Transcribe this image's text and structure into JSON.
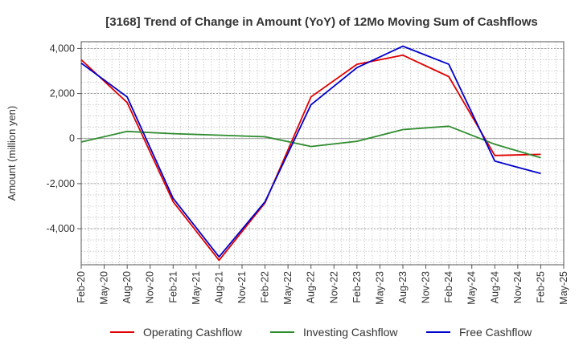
{
  "chart_data": {
    "type": "line",
    "title": "[3168]  Trend of Change in Amount (YoY) of 12Mo Moving Sum of Cashflows",
    "xlabel": "",
    "ylabel": "Amount (million yen)",
    "ylim": [
      -5600,
      4300
    ],
    "yticks": [
      -4000,
      -2000,
      0,
      2000,
      4000
    ],
    "ytick_labels": [
      "-4,000",
      "-2,000",
      "0",
      "2,000",
      "4,000"
    ],
    "categories": [
      "Feb-20",
      "May-20",
      "Aug-20",
      "Nov-20",
      "Feb-21",
      "May-21",
      "Aug-21",
      "Nov-21",
      "Feb-22",
      "May-22",
      "Aug-22",
      "Nov-22",
      "Feb-23",
      "May-23",
      "Aug-23",
      "Nov-23",
      "Feb-24",
      "May-24",
      "Aug-24",
      "Nov-24",
      "Feb-25",
      "May-25"
    ],
    "grid": true,
    "legend_position": "bottom",
    "series": [
      {
        "name": "Operating Cashflow",
        "color": "#e00000",
        "values": [
          3500,
          null,
          1600,
          null,
          -2800,
          null,
          -5400,
          null,
          -2850,
          null,
          1850,
          null,
          3300,
          null,
          3700,
          null,
          2750,
          null,
          -750,
          null,
          -700,
          null
        ]
      },
      {
        "name": "Investing Cashflow",
        "color": "#2e8b2e",
        "values": [
          -150,
          null,
          320,
          null,
          220,
          null,
          150,
          null,
          80,
          null,
          -350,
          null,
          -120,
          null,
          400,
          null,
          550,
          null,
          -250,
          null,
          -850,
          null
        ]
      },
      {
        "name": "Free Cashflow",
        "color": "#0000cc",
        "values": [
          3350,
          null,
          1850,
          null,
          -2650,
          null,
          -5250,
          null,
          -2800,
          null,
          1500,
          null,
          3150,
          null,
          4100,
          null,
          3300,
          null,
          -1000,
          null,
          -1550,
          null
        ]
      }
    ]
  }
}
